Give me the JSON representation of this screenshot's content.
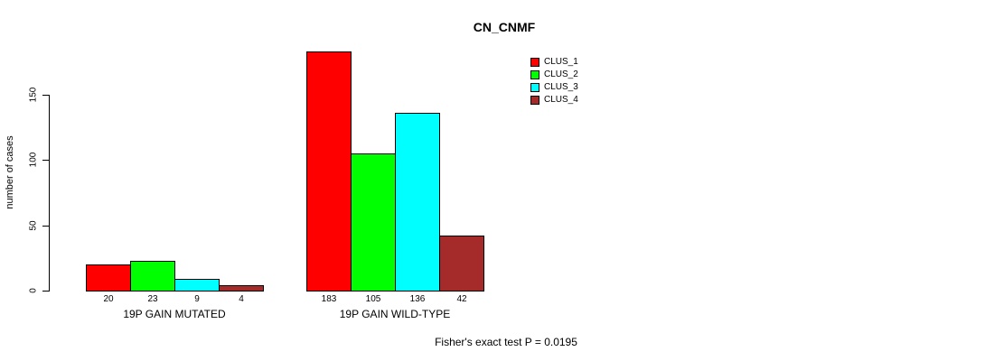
{
  "chart_data": {
    "type": "bar",
    "title": "CN_CNMF",
    "ylabel": "number of cases",
    "xlabel": "",
    "categories": [
      "19P GAIN MUTATED",
      "19P GAIN WILD-TYPE"
    ],
    "series": [
      {
        "name": "CLUS_1",
        "color": "#ff0000",
        "values": [
          20,
          183
        ]
      },
      {
        "name": "CLUS_2",
        "color": "#00ff00",
        "values": [
          23,
          105
        ]
      },
      {
        "name": "CLUS_3",
        "color": "#00ffff",
        "values": [
          9,
          136
        ]
      },
      {
        "name": "CLUS_4",
        "color": "#a52a2a",
        "values": [
          4,
          42
        ]
      }
    ],
    "bar_value_labels": [
      [
        "20",
        "23",
        "9",
        "4"
      ],
      [
        "183",
        "105",
        "136",
        "42"
      ]
    ],
    "yticks": [
      0,
      50,
      100,
      150
    ],
    "ylim": [
      0,
      183
    ],
    "grid": false,
    "legend_position": "top-right",
    "legend_entries": [
      "CLUS_1",
      "CLUS_2",
      "CLUS_3",
      "CLUS_4"
    ],
    "annotation": "Fisher's exact test P = 0.0195",
    "bar_border_color": "#000000",
    "axis_color": "#000000",
    "background_color": "#ffffff"
  }
}
